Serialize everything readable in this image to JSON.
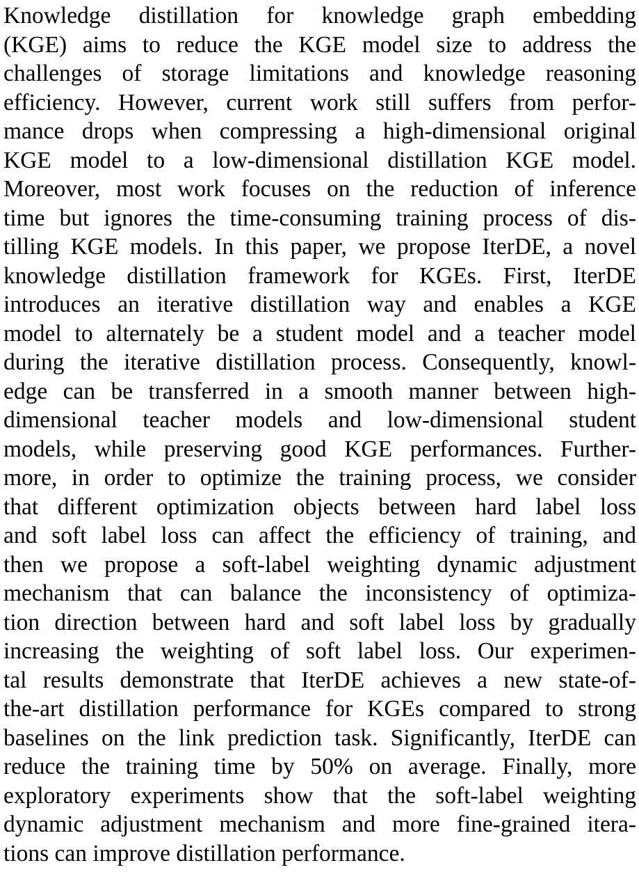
{
  "abstract": {
    "lines": [
      "Knowledge distillation for knowledge graph embedding",
      "(KGE) aims to reduce the KGE model size to address the",
      "challenges of storage limitations and knowledge reasoning",
      "efficiency. However, current work still suffers from perfor-",
      "mance drops when compressing a high-dimensional original",
      "KGE model to a low-dimensional distillation KGE model.",
      "Moreover, most work focuses on the reduction of inference",
      "time but ignores the time-consuming training process of dis-",
      "tilling KGE models. In this paper, we propose IterDE, a novel",
      "knowledge distillation framework for KGEs. First, IterDE",
      "introduces an iterative distillation way and enables a KGE",
      "model to alternately be a student model and a teacher model",
      "during the iterative distillation process. Consequently, knowl-",
      "edge can be transferred in a smooth manner between high-",
      "dimensional teacher models and low-dimensional student",
      "models, while preserving good KGE performances. Further-",
      "more, in order to optimize the training process, we consider",
      "that different optimization objects between hard label loss",
      "and soft label loss can affect the efficiency of training, and",
      "then we propose a soft-label weighting dynamic adjustment",
      "mechanism that can balance the inconsistency of optimiza-",
      "tion direction between hard and soft label loss by gradually",
      "increasing the weighting of soft label loss. Our experimen-",
      "tal results demonstrate that IterDE achieves a new state-of-",
      "the-art distillation performance for KGEs compared to strong",
      "baselines on the link prediction task. Significantly, IterDE can",
      "reduce the training time by 50% on average. Finally, more",
      "exploratory experiments show that the soft-label weighting",
      "dynamic adjustment mechanism and more fine-grained itera-",
      "tions can improve distillation performance."
    ]
  }
}
